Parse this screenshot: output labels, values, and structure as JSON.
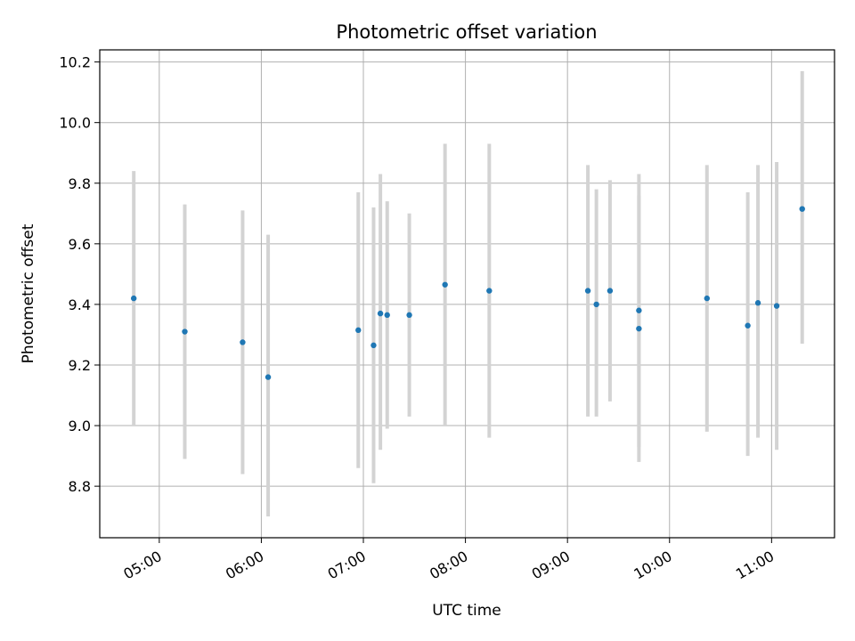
{
  "chart_data": {
    "type": "scatter",
    "title": "Photometric offset variation",
    "xlabel": "UTC time",
    "ylabel": "Photometric offset",
    "x_tick_labels": [
      "05:00",
      "06:00",
      "07:00",
      "08:00",
      "09:00",
      "10:00",
      "11:00"
    ],
    "y_tick_labels": [
      "8.8",
      "9.0",
      "9.2",
      "9.4",
      "9.6",
      "9.8",
      "10.0",
      "10.2"
    ],
    "xlim": [
      "04:25",
      "11:37"
    ],
    "ylim": [
      8.63,
      10.24
    ],
    "grid": true,
    "colors": {
      "points": "#1f77b4",
      "error_bars": "#d3d3d3",
      "grid": "#b0b0b0"
    },
    "points": [
      {
        "x": "04:45",
        "y": 9.42,
        "y_low": 9.0,
        "y_high": 9.84
      },
      {
        "x": "05:15",
        "y": 9.31,
        "y_low": 8.89,
        "y_high": 9.73
      },
      {
        "x": "05:49",
        "y": 9.275,
        "y_low": 8.84,
        "y_high": 9.71
      },
      {
        "x": "06:04",
        "y": 9.16,
        "y_low": 8.7,
        "y_high": 9.63
      },
      {
        "x": "06:57",
        "y": 9.315,
        "y_low": 8.86,
        "y_high": 9.77
      },
      {
        "x": "07:06",
        "y": 9.265,
        "y_low": 8.81,
        "y_high": 9.72
      },
      {
        "x": "07:10",
        "y": 9.37,
        "y_low": 8.92,
        "y_high": 9.83
      },
      {
        "x": "07:14",
        "y": 9.365,
        "y_low": 8.99,
        "y_high": 9.74
      },
      {
        "x": "07:27",
        "y": 9.365,
        "y_low": 9.03,
        "y_high": 9.7
      },
      {
        "x": "07:48",
        "y": 9.465,
        "y_low": 9.0,
        "y_high": 9.93
      },
      {
        "x": "08:14",
        "y": 9.445,
        "y_low": 8.96,
        "y_high": 9.93
      },
      {
        "x": "09:12",
        "y": 9.445,
        "y_low": 9.03,
        "y_high": 9.86
      },
      {
        "x": "09:17",
        "y": 9.4,
        "y_low": 9.03,
        "y_high": 9.78
      },
      {
        "x": "09:25",
        "y": 9.445,
        "y_low": 9.08,
        "y_high": 9.81
      },
      {
        "x": "09:42",
        "y": 9.38,
        "y_low": 8.93,
        "y_high": 9.83
      },
      {
        "x": "09:42",
        "y": 9.32,
        "y_low": 8.88,
        "y_high": 9.76
      },
      {
        "x": "10:22",
        "y": 9.42,
        "y_low": 8.98,
        "y_high": 9.86
      },
      {
        "x": "10:46",
        "y": 9.33,
        "y_low": 8.9,
        "y_high": 9.77
      },
      {
        "x": "10:52",
        "y": 9.405,
        "y_low": 8.96,
        "y_high": 9.86
      },
      {
        "x": "11:03",
        "y": 9.395,
        "y_low": 8.92,
        "y_high": 9.87
      },
      {
        "x": "11:18",
        "y": 9.715,
        "y_low": 9.27,
        "y_high": 10.17
      }
    ]
  }
}
